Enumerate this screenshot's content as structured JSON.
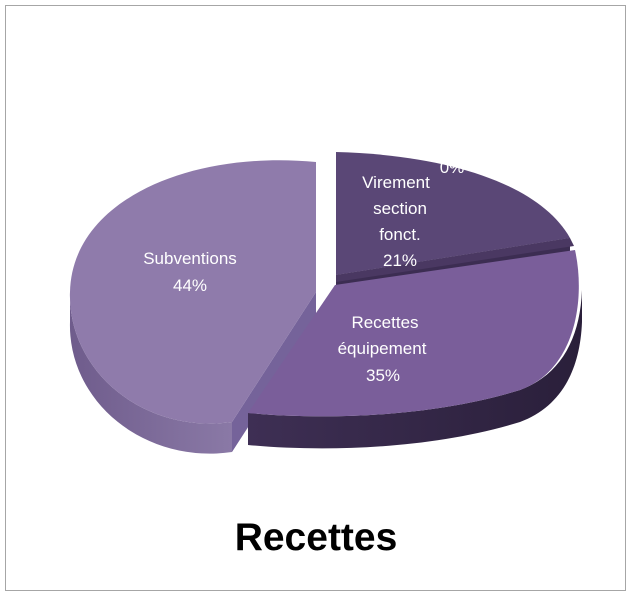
{
  "chart_data": {
    "type": "pie",
    "title": "Recettes",
    "exploded": true,
    "three_d": true,
    "slices": [
      {
        "name": "Virement section fonct.",
        "label_lines": [
          "Virement",
          "section",
          "fonct."
        ],
        "percent_label": "21%",
        "value": 21,
        "color": "#5a4776"
      },
      {
        "name": "",
        "label_lines": [],
        "percent_label": "0%",
        "value": 0,
        "color": "#4a3862"
      },
      {
        "name": "Recettes équipement",
        "label_lines": [
          "Recettes",
          "équipement"
        ],
        "percent_label": "35%",
        "value": 35,
        "color": "#7a5e9a"
      },
      {
        "name": "Subventions",
        "label_lines": [
          "Subventions"
        ],
        "percent_label": "44%",
        "value": 44,
        "color": "#8f7bab"
      }
    ]
  }
}
